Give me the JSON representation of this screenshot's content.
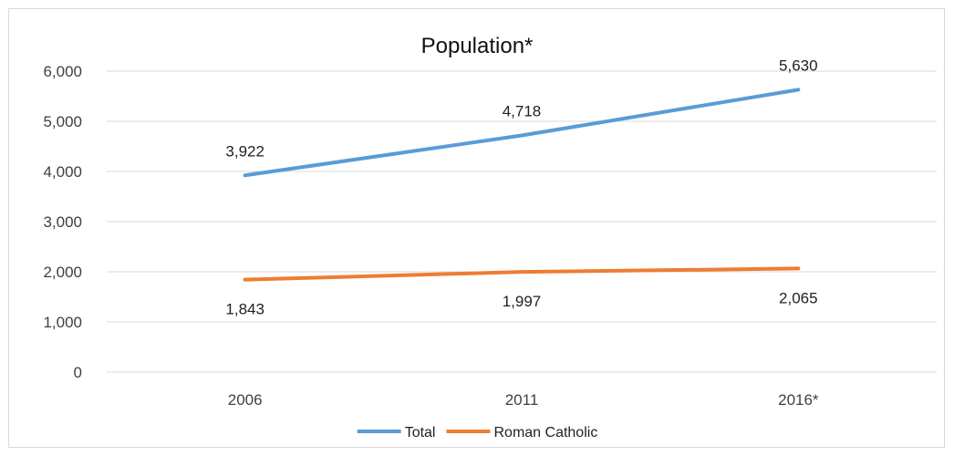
{
  "chart_data": {
    "type": "line",
    "title": "Population*",
    "xlabel": "",
    "ylabel": "",
    "categories": [
      "2006",
      "2011",
      "2016*"
    ],
    "ylim": [
      0,
      6000
    ],
    "y_ticks": [
      0,
      1000,
      2000,
      3000,
      4000,
      5000,
      6000
    ],
    "y_tick_labels": [
      "0",
      "1,000",
      "2,000",
      "3,000",
      "4,000",
      "5,000",
      "6,000"
    ],
    "grid": true,
    "legend_position": "bottom",
    "series": [
      {
        "name": "Total",
        "color": "#5b9bd5",
        "values": [
          3922,
          4718,
          5630
        ],
        "labels": [
          "3,922",
          "4,718",
          "5,630"
        ],
        "label_position": "above"
      },
      {
        "name": "Roman Catholic",
        "color": "#ed7d31",
        "values": [
          1843,
          1997,
          2065
        ],
        "labels": [
          "1,843",
          "1,997",
          "2,065"
        ],
        "label_position": "below"
      }
    ]
  }
}
